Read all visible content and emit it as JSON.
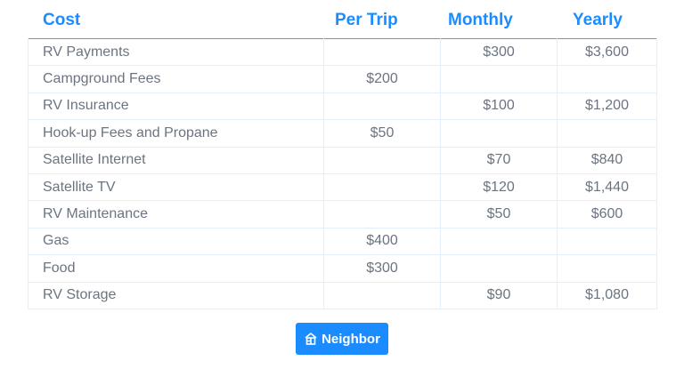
{
  "headers": [
    "Cost",
    "Per Trip",
    "Monthly",
    "Yearly"
  ],
  "rows": [
    [
      "RV Payments",
      "",
      "$300",
      "$3,600"
    ],
    [
      "Campground Fees",
      "$200",
      "",
      ""
    ],
    [
      "RV Insurance",
      "",
      "$100",
      "$1,200"
    ],
    [
      "Hook-up Fees and Propane",
      "$50",
      "",
      ""
    ],
    [
      "Satellite Internet",
      "",
      "$70",
      "$840"
    ],
    [
      "Satellite TV",
      "",
      "$120",
      "$1,440"
    ],
    [
      "RV Maintenance",
      "",
      "$50",
      "$600"
    ],
    [
      "Gas",
      "$400",
      "",
      ""
    ],
    [
      "Food",
      "$300",
      "",
      ""
    ],
    [
      "RV Storage",
      "",
      "$90",
      "$1,080"
    ]
  ],
  "brand": {
    "label": "Neighbor",
    "icon": "house-icon",
    "color": "#1a8cff"
  }
}
